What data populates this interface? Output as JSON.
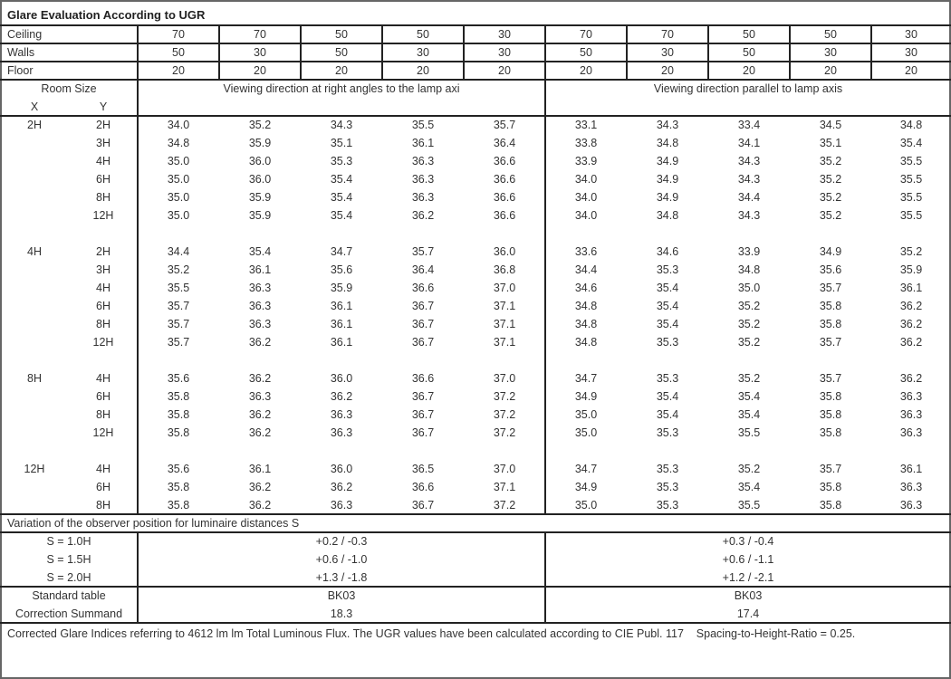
{
  "title": "Glare Evaluation According to UGR",
  "params": [
    {
      "label": "Ceiling",
      "values": [
        "70",
        "70",
        "50",
        "50",
        "30",
        "70",
        "70",
        "50",
        "50",
        "30"
      ]
    },
    {
      "label": "Walls",
      "values": [
        "50",
        "30",
        "50",
        "30",
        "30",
        "50",
        "30",
        "50",
        "30",
        "30"
      ]
    },
    {
      "label": "Floor",
      "values": [
        "20",
        "20",
        "20",
        "20",
        "20",
        "20",
        "20",
        "20",
        "20",
        "20"
      ]
    }
  ],
  "room_size_label": "Room Size",
  "x_label": "X",
  "y_label": "Y",
  "dir_right": "Viewing direction at right angles to the lamp axi",
  "dir_parallel": "Viewing direction parallel to lamp axis",
  "groups": [
    {
      "x": "2H",
      "rows": [
        {
          "y": "2H",
          "values": [
            "34.0",
            "35.2",
            "34.3",
            "35.5",
            "35.7",
            "33.1",
            "34.3",
            "33.4",
            "34.5",
            "34.8"
          ]
        },
        {
          "y": "3H",
          "values": [
            "34.8",
            "35.9",
            "35.1",
            "36.1",
            "36.4",
            "33.8",
            "34.8",
            "34.1",
            "35.1",
            "35.4"
          ]
        },
        {
          "y": "4H",
          "values": [
            "35.0",
            "36.0",
            "35.3",
            "36.3",
            "36.6",
            "33.9",
            "34.9",
            "34.3",
            "35.2",
            "35.5"
          ]
        },
        {
          "y": "6H",
          "values": [
            "35.0",
            "36.0",
            "35.4",
            "36.3",
            "36.6",
            "34.0",
            "34.9",
            "34.3",
            "35.2",
            "35.5"
          ]
        },
        {
          "y": "8H",
          "values": [
            "35.0",
            "35.9",
            "35.4",
            "36.3",
            "36.6",
            "34.0",
            "34.9",
            "34.4",
            "35.2",
            "35.5"
          ]
        },
        {
          "y": "12H",
          "values": [
            "35.0",
            "35.9",
            "35.4",
            "36.2",
            "36.6",
            "34.0",
            "34.8",
            "34.3",
            "35.2",
            "35.5"
          ]
        }
      ]
    },
    {
      "x": "4H",
      "rows": [
        {
          "y": "2H",
          "values": [
            "34.4",
            "35.4",
            "34.7",
            "35.7",
            "36.0",
            "33.6",
            "34.6",
            "33.9",
            "34.9",
            "35.2"
          ]
        },
        {
          "y": "3H",
          "values": [
            "35.2",
            "36.1",
            "35.6",
            "36.4",
            "36.8",
            "34.4",
            "35.3",
            "34.8",
            "35.6",
            "35.9"
          ]
        },
        {
          "y": "4H",
          "values": [
            "35.5",
            "36.3",
            "35.9",
            "36.6",
            "37.0",
            "34.6",
            "35.4",
            "35.0",
            "35.7",
            "36.1"
          ]
        },
        {
          "y": "6H",
          "values": [
            "35.7",
            "36.3",
            "36.1",
            "36.7",
            "37.1",
            "34.8",
            "35.4",
            "35.2",
            "35.8",
            "36.2"
          ]
        },
        {
          "y": "8H",
          "values": [
            "35.7",
            "36.3",
            "36.1",
            "36.7",
            "37.1",
            "34.8",
            "35.4",
            "35.2",
            "35.8",
            "36.2"
          ]
        },
        {
          "y": "12H",
          "values": [
            "35.7",
            "36.2",
            "36.1",
            "36.7",
            "37.1",
            "34.8",
            "35.3",
            "35.2",
            "35.7",
            "36.2"
          ]
        }
      ]
    },
    {
      "x": "8H",
      "rows": [
        {
          "y": "4H",
          "values": [
            "35.6",
            "36.2",
            "36.0",
            "36.6",
            "37.0",
            "34.7",
            "35.3",
            "35.2",
            "35.7",
            "36.2"
          ]
        },
        {
          "y": "6H",
          "values": [
            "35.8",
            "36.3",
            "36.2",
            "36.7",
            "37.2",
            "34.9",
            "35.4",
            "35.4",
            "35.8",
            "36.3"
          ]
        },
        {
          "y": "8H",
          "values": [
            "35.8",
            "36.2",
            "36.3",
            "36.7",
            "37.2",
            "35.0",
            "35.4",
            "35.4",
            "35.8",
            "36.3"
          ]
        },
        {
          "y": "12H",
          "values": [
            "35.8",
            "36.2",
            "36.3",
            "36.7",
            "37.2",
            "35.0",
            "35.3",
            "35.5",
            "35.8",
            "36.3"
          ]
        }
      ]
    },
    {
      "x": "12H",
      "rows": [
        {
          "y": "4H",
          "values": [
            "35.6",
            "36.1",
            "36.0",
            "36.5",
            "37.0",
            "34.7",
            "35.3",
            "35.2",
            "35.7",
            "36.1"
          ]
        },
        {
          "y": "6H",
          "values": [
            "35.8",
            "36.2",
            "36.2",
            "36.6",
            "37.1",
            "34.9",
            "35.3",
            "35.4",
            "35.8",
            "36.3"
          ]
        },
        {
          "y": "8H",
          "values": [
            "35.8",
            "36.2",
            "36.3",
            "36.7",
            "37.2",
            "35.0",
            "35.3",
            "35.5",
            "35.8",
            "36.3"
          ]
        }
      ]
    }
  ],
  "variation_label": "Variation of the observer position for luminaire distances S",
  "variation": [
    {
      "label": "S = 1.0H",
      "right": "+0.2 / -0.3",
      "parallel": "+0.3 / -0.4"
    },
    {
      "label": "S = 1.5H",
      "right": "+0.6 / -1.0",
      "parallel": "+0.6 / -1.1"
    },
    {
      "label": "S = 2.0H",
      "right": "+1.3 / -1.8",
      "parallel": "+1.2 / -2.1"
    }
  ],
  "standard_table": {
    "label": "Standard table",
    "right": "BK03",
    "parallel": "BK03"
  },
  "correction": {
    "label": "Correction Summand",
    "right": "18.3",
    "parallel": "17.4"
  },
  "footnote": "Corrected Glare Indices referring to 4612 lm lm Total Luminous Flux. The UGR values have been calculated according to CIE Publ. 117    Spacing-to-Height-Ratio = 0.25."
}
